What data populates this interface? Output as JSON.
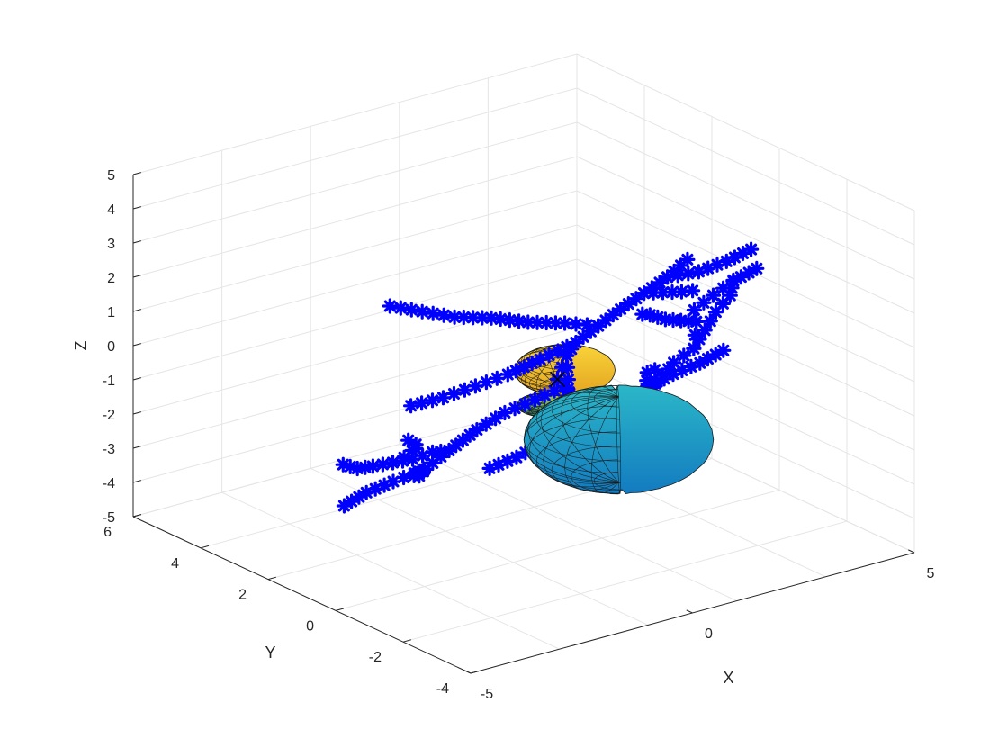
{
  "chart_data": {
    "type": "scatter3d",
    "title": "",
    "xlabel": "X",
    "ylabel": "Y",
    "zlabel": "Z",
    "xlim": [
      -5,
      5
    ],
    "ylim": [
      -4,
      6
    ],
    "zlim": [
      -5,
      5
    ],
    "xticks": [
      "-5",
      "0",
      "5"
    ],
    "yticks": [
      "-4",
      "-2",
      "0",
      "2",
      "4",
      "6"
    ],
    "zticks": [
      "-5",
      "-4",
      "-3",
      "-2",
      "-1",
      "0",
      "1",
      "2",
      "3",
      "4",
      "5"
    ],
    "grid": true,
    "view": {
      "azimuth": -37.5,
      "elevation": 30
    },
    "seed_marker": {
      "symbol": "x",
      "color": "#000000",
      "x": 0,
      "y": 0,
      "z": 0
    },
    "series": [
      {
        "marker": "*",
        "color": "#0000ff",
        "branches": [
          {
            "points": [
              [
                0,
                0,
                0
              ],
              [
                0.3,
                0.2,
                -0.4
              ],
              [
                0.6,
                0.3,
                -0.9
              ],
              [
                0.9,
                0.6,
                -1.3
              ],
              [
                1.3,
                0.9,
                -1.7
              ],
              [
                1.7,
                1.1,
                -2.0
              ],
              [
                2.2,
                1.2,
                -2.3
              ],
              [
                2.6,
                1.6,
                -2.4
              ],
              [
                3.1,
                1.9,
                -2.6
              ],
              [
                3.6,
                2.1,
                -2.5
              ],
              [
                4.0,
                2.6,
                -2.4
              ],
              [
                4.4,
                2.9,
                -2.6
              ]
            ]
          },
          {
            "points": [
              [
                2.2,
                1.2,
                -2.3
              ],
              [
                2.4,
                0.9,
                -1.8
              ],
              [
                2.7,
                0.6,
                -1.3
              ],
              [
                3.0,
                0.5,
                -0.8
              ],
              [
                3.3,
                0.3,
                -0.4
              ],
              [
                3.7,
                0.5,
                -0.1
              ],
              [
                4.1,
                0.7,
                0.2
              ],
              [
                4.5,
                0.8,
                0.5
              ],
              [
                4.8,
                1.1,
                0.7
              ]
            ]
          },
          {
            "points": [
              [
                3.3,
                0.3,
                -0.4
              ],
              [
                3.1,
                0.0,
                0.2
              ],
              [
                2.9,
                -0.3,
                0.8
              ],
              [
                2.7,
                -0.5,
                1.3
              ],
              [
                2.9,
                -0.8,
                1.8
              ],
              [
                3.2,
                -1.0,
                2.2
              ],
              [
                3.5,
                -1.3,
                2.6
              ]
            ]
          },
          {
            "points": [
              [
                2.9,
                -0.3,
                0.8
              ],
              [
                2.4,
                -0.5,
                1.1
              ],
              [
                1.9,
                -0.7,
                1.4
              ],
              [
                1.4,
                -0.9,
                1.8
              ],
              [
                1.0,
                -1.2,
                2.1
              ]
            ]
          },
          {
            "points": [
              [
                0.3,
                0.2,
                -0.4
              ],
              [
                0.1,
                0.8,
                -1.0
              ],
              [
                -0.2,
                1.3,
                -1.5
              ],
              [
                -0.6,
                1.6,
                -2.0
              ],
              [
                -1.0,
                1.9,
                -2.6
              ],
              [
                -1.4,
                2.1,
                -3.1
              ],
              [
                -1.8,
                2.5,
                -3.5
              ],
              [
                -2.1,
                2.9,
                -3.9
              ],
              [
                -2.3,
                3.3,
                -4.4
              ]
            ]
          },
          {
            "points": [
              [
                -1.0,
                1.9,
                -2.6
              ],
              [
                -1.6,
                1.6,
                -2.3
              ],
              [
                -2.2,
                1.4,
                -2.2
              ],
              [
                -2.8,
                1.2,
                -2.0
              ],
              [
                -3.4,
                1.0,
                -1.8
              ],
              [
                -3.9,
                0.8,
                -1.6
              ],
              [
                -4.3,
                0.7,
                -1.3
              ]
            ]
          },
          {
            "points": [
              [
                -2.8,
                1.2,
                -2.0
              ],
              [
                -3.0,
                0.6,
                -1.5
              ],
              [
                -3.2,
                0.1,
                -1.0
              ],
              [
                -3.5,
                -0.4,
                -0.6
              ],
              [
                -3.8,
                -0.8,
                -0.2
              ],
              [
                -4.2,
                -1.1,
                0.2
              ]
            ]
          },
          {
            "points": [
              [
                -1.4,
                2.1,
                -3.1
              ],
              [
                -1.1,
                2.7,
                -3.6
              ],
              [
                -0.8,
                3.2,
                -4.0
              ],
              [
                -0.4,
                3.7,
                -4.3
              ],
              [
                0.0,
                4.1,
                -4.7
              ],
              [
                0.4,
                4.5,
                -4.9
              ]
            ]
          },
          {
            "points": [
              [
                0,
                0,
                0
              ],
              [
                -0.2,
                -0.4,
                0.6
              ],
              [
                -0.4,
                -0.8,
                1.2
              ],
              [
                -0.5,
                -1.2,
                1.8
              ],
              [
                -0.3,
                -1.6,
                2.4
              ],
              [
                -0.1,
                -2.0,
                3.0
              ],
              [
                0.2,
                -2.3,
                3.5
              ],
              [
                0.5,
                -2.6,
                4.0
              ],
              [
                0.8,
                -2.8,
                4.5
              ]
            ]
          },
          {
            "points": [
              [
                -0.3,
                -1.6,
                2.4
              ],
              [
                -0.9,
                -1.4,
                2.6
              ],
              [
                -1.5,
                -1.1,
                2.7
              ],
              [
                -2.1,
                -0.8,
                2.9
              ],
              [
                -2.7,
                -0.5,
                3.0
              ],
              [
                -3.2,
                -0.2,
                3.2
              ],
              [
                -3.7,
                0.1,
                3.4
              ]
            ]
          },
          {
            "points": [
              [
                -0.5,
                -1.2,
                1.8
              ],
              [
                -1.0,
                -0.8,
                1.3
              ],
              [
                -1.5,
                -0.5,
                0.9
              ],
              [
                -2.0,
                -0.2,
                0.6
              ],
              [
                -2.5,
                0.1,
                0.3
              ],
              [
                -3.0,
                0.4,
                0.1
              ]
            ]
          },
          {
            "points": [
              [
                0.5,
                -2.6,
                4.0
              ],
              [
                0.9,
                -3.0,
                4.2
              ],
              [
                1.3,
                -3.3,
                4.5
              ],
              [
                1.7,
                -3.5,
                4.8
              ]
            ]
          },
          {
            "points": [
              [
                0.2,
                -2.3,
                3.5
              ],
              [
                0.7,
                -2.2,
                3.3
              ],
              [
                1.2,
                -2.1,
                3.1
              ],
              [
                1.6,
                -1.9,
                2.9
              ]
            ]
          },
          {
            "points": [
              [
                -0.4,
                -0.8,
                1.2
              ],
              [
                -0.9,
                -1.5,
                1.0
              ],
              [
                -1.3,
                -2.0,
                0.8
              ],
              [
                -1.7,
                -2.4,
                0.6
              ]
            ]
          },
          {
            "points": [
              [
                1.7,
                1.1,
                -2.0
              ],
              [
                1.5,
                1.6,
                -2.6
              ],
              [
                1.2,
                2.0,
                -3.2
              ],
              [
                0.9,
                2.4,
                -3.7
              ],
              [
                0.6,
                2.8,
                -4.1
              ]
            ]
          },
          {
            "points": [
              [
                3.6,
                2.1,
                -2.5
              ],
              [
                3.9,
                1.7,
                -2.0
              ],
              [
                4.2,
                1.3,
                -1.6
              ],
              [
                4.5,
                1.0,
                -1.2
              ]
            ]
          }
        ]
      }
    ],
    "surfaces": [
      {
        "type": "ellipsoid",
        "colormap": "parula",
        "color_top": "#f9d43a",
        "color_bottom": "#e3a420",
        "center": [
          0.7,
          0.7,
          -0.3
        ],
        "radii": [
          0.9,
          0.9,
          0.55
        ]
      },
      {
        "type": "ellipsoid",
        "colormap": "parula",
        "color_top": "#2bb7c8",
        "color_bottom": "#137bc0",
        "center": [
          2.9,
          2.0,
          -3.7
        ],
        "radii": [
          1.7,
          1.7,
          1.25
        ]
      },
      {
        "type": "ellipsoid",
        "colormap": "parula",
        "color_top": "#b3c93b",
        "color_bottom": "#2e9a8a",
        "center": [
          0.4,
          0.9,
          -1.3
        ],
        "radii": [
          0.5,
          0.5,
          0.2
        ]
      }
    ]
  }
}
